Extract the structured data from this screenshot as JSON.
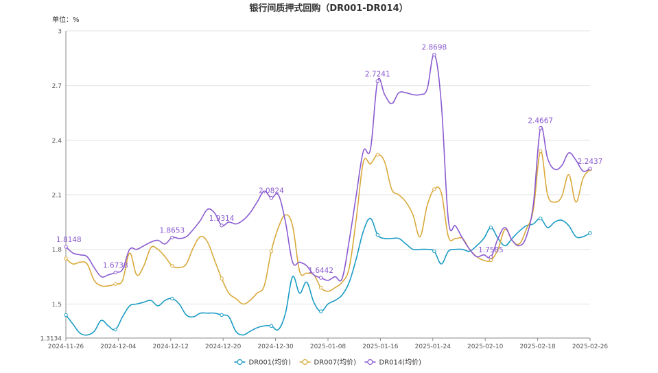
{
  "chart_data": {
    "type": "line",
    "title": "银行间质押式回购（DR001-DR014）",
    "unit_label": "单位：%",
    "ylim": [
      1.3134,
      3
    ],
    "yticks": [
      "1.3134",
      "1.5",
      "1.8",
      "2.1",
      "2.4",
      "2.7",
      "3"
    ],
    "grid": true,
    "legend_position": "bottom-center",
    "x_ticks": [
      "2024-11-26",
      "2024-12-04",
      "2024-12-12",
      "2024-12-20",
      "2024-12-30",
      "2025-01-08",
      "2025-01-16",
      "2025-01-24",
      "2025-02-10",
      "2025-02-18",
      "2025-02-26"
    ],
    "series": [
      {
        "name": "DR001(均价)",
        "color": "#1a9bc4",
        "values": [
          1.44,
          1.39,
          1.34,
          1.33,
          1.35,
          1.41,
          1.38,
          1.36,
          1.43,
          1.49,
          1.5,
          1.51,
          1.52,
          1.49,
          1.52,
          1.53,
          1.5,
          1.44,
          1.43,
          1.45,
          1.45,
          1.45,
          1.44,
          1.43,
          1.35,
          1.33,
          1.35,
          1.37,
          1.38,
          1.38,
          1.36,
          1.45,
          1.65,
          1.56,
          1.62,
          1.51,
          1.46,
          1.5,
          1.52,
          1.55,
          1.62,
          1.75,
          1.9,
          1.97,
          1.88,
          1.86,
          1.86,
          1.86,
          1.83,
          1.8,
          1.8,
          1.8,
          1.79,
          1.72,
          1.79,
          1.8,
          1.8,
          1.79,
          1.82,
          1.86,
          1.92,
          1.86,
          1.82,
          1.86,
          1.9,
          1.93,
          1.94,
          1.97,
          1.92,
          1.95,
          1.96,
          1.93,
          1.87,
          1.87,
          1.89
        ],
        "labels": []
      },
      {
        "name": "DR007(均价)",
        "color": "#d9a93a",
        "values": [
          1.75,
          1.72,
          1.73,
          1.72,
          1.63,
          1.6,
          1.6,
          1.61,
          1.63,
          1.78,
          1.66,
          1.71,
          1.81,
          1.8,
          1.76,
          1.71,
          1.7,
          1.72,
          1.81,
          1.87,
          1.84,
          1.74,
          1.64,
          1.56,
          1.53,
          1.5,
          1.52,
          1.56,
          1.6,
          1.79,
          1.92,
          1.99,
          1.93,
          1.68,
          1.67,
          1.66,
          1.59,
          1.57,
          1.59,
          1.62,
          1.7,
          1.97,
          2.28,
          2.27,
          2.32,
          2.28,
          2.13,
          2.1,
          2.06,
          1.99,
          1.87,
          2.04,
          2.13,
          2.11,
          1.87,
          1.86,
          1.86,
          1.8,
          1.76,
          1.74,
          1.74,
          1.8,
          1.91,
          1.85,
          1.83,
          1.91,
          2.02,
          2.34,
          2.1,
          2.06,
          2.09,
          2.21,
          2.06,
          2.19,
          2.24
        ],
        "labels": []
      },
      {
        "name": "DR014(均价)",
        "color": "#8a5ad0",
        "values": [
          1.8148,
          1.78,
          1.77,
          1.76,
          1.7,
          1.65,
          1.66,
          1.6738,
          1.69,
          1.8,
          1.8,
          1.82,
          1.84,
          1.85,
          1.83,
          1.8653,
          1.86,
          1.87,
          1.91,
          1.96,
          2.02,
          2.0,
          1.9314,
          1.95,
          1.94,
          1.96,
          2.0,
          2.06,
          2.12,
          2.0824,
          2.1,
          1.95,
          1.73,
          1.73,
          1.71,
          1.66,
          1.6442,
          1.63,
          1.65,
          1.64,
          1.85,
          2.1,
          2.34,
          2.35,
          2.7241,
          2.65,
          2.6,
          2.66,
          2.66,
          2.65,
          2.65,
          2.68,
          2.8698,
          2.6,
          1.96,
          1.93,
          1.86,
          1.8,
          1.76,
          1.77,
          1.7585,
          1.86,
          1.92,
          1.85,
          1.82,
          1.87,
          2.05,
          2.4667,
          2.3,
          2.24,
          2.26,
          2.33,
          2.29,
          2.23,
          2.2437
        ],
        "labels": [
          {
            "index": 0,
            "text": "1.8148"
          },
          {
            "index": 7,
            "text": "1.6738"
          },
          {
            "index": 15,
            "text": "1.8653"
          },
          {
            "index": 22,
            "text": "1.9314"
          },
          {
            "index": 29,
            "text": "2.0824"
          },
          {
            "index": 36,
            "text": "1.6442"
          },
          {
            "index": 44,
            "text": "2.7241"
          },
          {
            "index": 52,
            "text": "2.8698"
          },
          {
            "index": 60,
            "text": "1.7585"
          },
          {
            "index": 67,
            "text": "2.4667"
          },
          {
            "index": 74,
            "text": "2.2437"
          }
        ]
      }
    ]
  }
}
